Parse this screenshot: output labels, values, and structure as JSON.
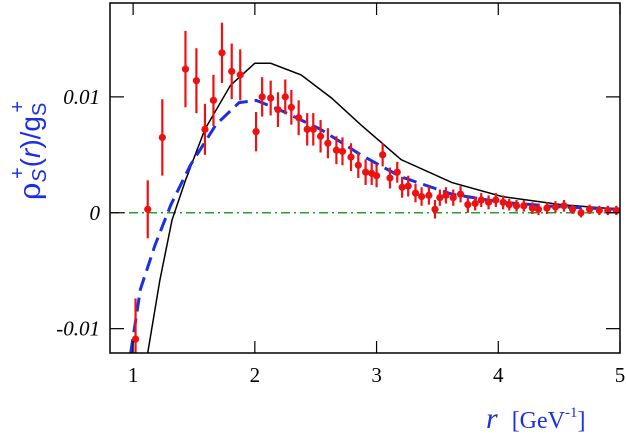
{
  "chart_data": {
    "type": "line",
    "xlim": [
      0.81,
      5
    ],
    "ylim": [
      -0.0121,
      0.0181
    ],
    "xticks": [
      1,
      2,
      3,
      4,
      5
    ],
    "yticks": [
      -0.01,
      0,
      0.01
    ],
    "xlabel": [
      "r",
      "[GeV",
      "-1",
      "]"
    ],
    "ylabel": [
      "ρ",
      "S",
      "+",
      "(",
      "r",
      ")/g",
      "S",
      "+"
    ],
    "series": [
      {
        "style": "dashdot",
        "color": "#2a9d2a",
        "x": [
          0.81,
          5
        ],
        "values": [
          0,
          0
        ]
      },
      {
        "style": "solid",
        "color": "#000000",
        "x": [
          1.12,
          1.22,
          1.32,
          1.43,
          1.59,
          1.8,
          2.0,
          2.13,
          2.38,
          2.63,
          2.87,
          3.2,
          3.62,
          4.03,
          4.52,
          5.0
        ],
        "values": [
          -0.0121,
          -0.0058,
          -0.0006,
          0.0028,
          0.0072,
          0.011,
          0.0129,
          0.0129,
          0.0119,
          0.0099,
          0.0076,
          0.0046,
          0.0026,
          0.0014,
          0.0007,
          0.0003
        ]
      },
      {
        "style": "dashed",
        "color": "#1a2ee6",
        "x": [
          0.98,
          1.06,
          1.18,
          1.31,
          1.47,
          1.68,
          1.87,
          2.01,
          2.2,
          2.54,
          2.87,
          3.2,
          3.62,
          4.03,
          4.52,
          5.0
        ],
        "values": [
          -0.0121,
          -0.0066,
          -0.0028,
          0.0007,
          0.0041,
          0.0076,
          0.0095,
          0.0097,
          0.0089,
          0.0072,
          0.005,
          0.0031,
          0.0016,
          0.0009,
          0.0005,
          0.0003
        ]
      },
      {
        "style": "points",
        "color": "#ee1111",
        "x": [
          1.02,
          1.12,
          1.24,
          1.43,
          1.52,
          1.59,
          1.66,
          1.73,
          1.81,
          1.88,
          2.01,
          2.06,
          2.13,
          2.19,
          2.25,
          2.3,
          2.36,
          2.43,
          2.48,
          2.54,
          2.6,
          2.67,
          2.72,
          2.79,
          2.85,
          2.91,
          2.96,
          3.0,
          3.05,
          3.11,
          3.17,
          3.21,
          3.26,
          3.32,
          3.37,
          3.43,
          3.48,
          3.52,
          3.57,
          3.63,
          3.69,
          3.75,
          3.81,
          3.86,
          3.92,
          3.98,
          4.04,
          4.09,
          4.15,
          4.21,
          4.28,
          4.33,
          4.4,
          4.47,
          4.54,
          4.61,
          4.68,
          4.75,
          4.83,
          4.9,
          4.97
        ],
        "values": [
          -0.0109,
          0.0003,
          0.0065,
          0.0124,
          0.0114,
          0.0072,
          0.0097,
          0.0138,
          0.0122,
          0.0119,
          0.007,
          0.01,
          0.0099,
          0.0089,
          0.01,
          0.0091,
          0.0082,
          0.0072,
          0.0072,
          0.0066,
          0.006,
          0.0054,
          0.0053,
          0.0048,
          0.0041,
          0.0035,
          0.0034,
          0.0032,
          0.005,
          0.003,
          0.0035,
          0.0022,
          0.0023,
          0.0017,
          0.0014,
          0.0015,
          0.0003,
          0.0013,
          0.0015,
          0.0013,
          0.0016,
          0.0007,
          0.0008,
          0.0011,
          0.0009,
          0.0011,
          0.0009,
          0.0007,
          0.0006,
          0.0006,
          0.0004,
          0.0003,
          0.0004,
          0.0005,
          0.0006,
          0.0003,
          0.0,
          0.0003,
          0.0002,
          0.0002,
          0.0002
        ],
        "errors": [
          0.0035,
          0.0025,
          0.0033,
          0.0033,
          0.0028,
          0.0022,
          0.0022,
          0.0026,
          0.0024,
          0.0022,
          0.0017,
          0.0017,
          0.0015,
          0.0015,
          0.0015,
          0.0015,
          0.0015,
          0.0014,
          0.0014,
          0.0014,
          0.0013,
          0.0012,
          0.0012,
          0.0012,
          0.0011,
          0.0011,
          0.001,
          0.001,
          0.001,
          0.0009,
          0.0009,
          0.0009,
          0.0009,
          0.0008,
          0.0008,
          0.0008,
          0.0008,
          0.0007,
          0.0007,
          0.0007,
          0.0007,
          0.0007,
          0.0006,
          0.0006,
          0.0006,
          0.0006,
          0.0006,
          0.0005,
          0.0005,
          0.0005,
          0.0005,
          0.0005,
          0.0005,
          0.0005,
          0.0005,
          0.0004,
          0.0004,
          0.0004,
          0.0004,
          0.0004,
          0.0004
        ]
      }
    ]
  }
}
